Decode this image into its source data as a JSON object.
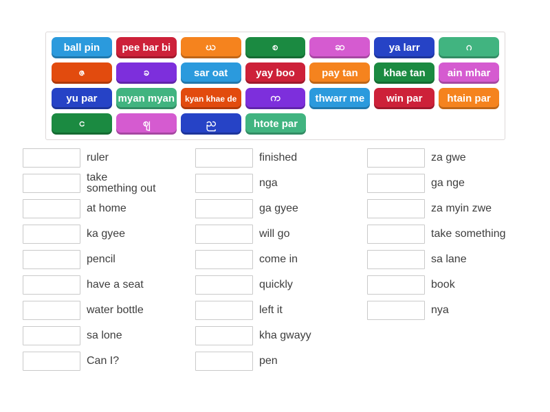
{
  "activity": {
    "type_label": "Match up"
  },
  "palette": {
    "blue": "#2b9add",
    "crimson": "#cd2139",
    "orange": "#f5831e",
    "green": "#1b8a41",
    "orchid": "#d55bd0",
    "royal": "#2643c6",
    "seagreen": "#41b480",
    "orangered": "#e24b0e",
    "purple": "#7d2fdc"
  },
  "tiles": {
    "rows": [
      [
        {
          "label": "ball pin",
          "color": "blue"
        },
        {
          "label": "pee bar bi",
          "color": "crimson"
        },
        {
          "label": "ဃ",
          "color": "orange"
        },
        {
          "label": "စ",
          "color": "green"
        },
        {
          "label": "ဆ",
          "color": "orchid"
        },
        {
          "label": "ya larr",
          "color": "royal"
        },
        {
          "label": "ဂ",
          "color": "seagreen"
        }
      ],
      [
        {
          "label": "ဇ",
          "color": "orangered"
        },
        {
          "label": "ခ",
          "color": "purple"
        },
        {
          "label": "sar oat",
          "color": "blue"
        },
        {
          "label": "yay boo",
          "color": "crimson"
        },
        {
          "label": "pay tan",
          "color": "orange"
        },
        {
          "label": "khae tan",
          "color": "green"
        },
        {
          "label": "ain mhar",
          "color": "orchid"
        }
      ],
      [
        {
          "label": "yu par",
          "color": "royal"
        },
        {
          "label": "myan myan",
          "color": "seagreen"
        },
        {
          "label": "kyan khae de",
          "color": "orangered",
          "small": true
        },
        {
          "label": "က",
          "color": "purple"
        },
        {
          "label": "thwarr me",
          "color": "blue"
        },
        {
          "label": "win par",
          "color": "crimson"
        },
        {
          "label": "htain par",
          "color": "orange"
        }
      ],
      [
        {
          "label": "င",
          "color": "green"
        },
        {
          "label": "ဈ",
          "color": "orchid"
        },
        {
          "label": "ည",
          "color": "royal"
        },
        {
          "label": "htote par",
          "color": "seagreen"
        }
      ]
    ]
  },
  "answers": {
    "columns": [
      {
        "items": [
          "ruler",
          "take\nsomething out",
          "at home",
          "ka gyee",
          "pencil",
          "have a seat",
          "water bottle",
          "sa lone",
          "Can I?"
        ]
      },
      {
        "items": [
          "finished",
          "nga",
          "ga gyee",
          "will go",
          "come in",
          "quickly",
          "left it",
          "kha gwayy",
          "pen"
        ]
      },
      {
        "items": [
          "za gwe",
          "ga nge",
          "za myin zwe",
          "take something",
          "sa lane",
          "book",
          "nya"
        ]
      }
    ]
  }
}
